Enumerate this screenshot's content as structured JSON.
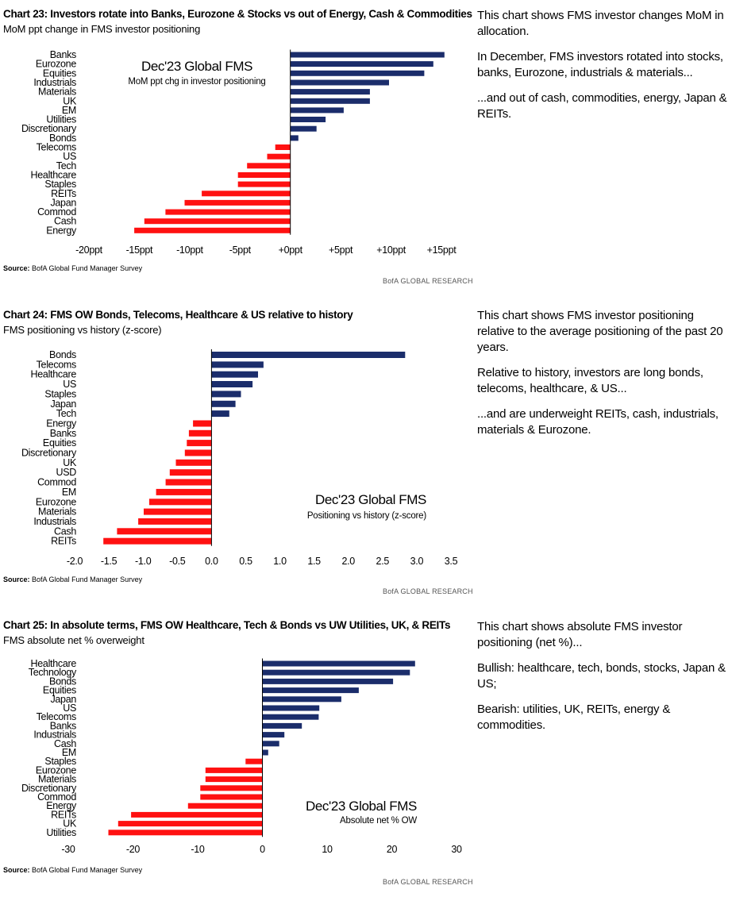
{
  "colors": {
    "positive": "#1b2d6b",
    "negative": "#ff1111",
    "axis": "#000000"
  },
  "charts": [
    {
      "title": "Chart 23: Investors rotate into Banks, Eurozone & Stocks vs out of Energy, Cash & Commodities",
      "subtitle": "MoM ppt change in FMS investor positioning",
      "annotation_title": "Dec'23 Global FMS",
      "annotation_sub": "MoM ppt chg in investor positioning",
      "source_label": "Source:",
      "source_text": "BofA Global Fund Manager Survey",
      "brand": "BofA GLOBAL RESEARCH",
      "side_text": [
        "This chart shows FMS investor changes MoM in allocation.",
        "In December, FMS investors rotated into stocks, banks, Eurozone, industrials & materials...",
        "...and out of cash, commodities, energy, Japan & REITs."
      ]
    },
    {
      "title": "Chart 24: FMS OW Bonds, Telecoms, Healthcare & US relative to history",
      "subtitle": "FMS positioning vs history (z-score)",
      "annotation_title": "Dec'23 Global FMS",
      "annotation_sub": "Positioning vs history (z-score)",
      "source_label": "Source:",
      "source_text": "BofA Global Fund Manager Survey",
      "brand": "BofA GLOBAL RESEARCH",
      "side_text": [
        "This chart shows FMS investor positioning relative to the average positioning of the past 20 years.",
        "Relative to history, investors are long bonds, telecoms, healthcare, & US...",
        "...and are underweight REITs, cash, industrials, materials & Eurozone."
      ]
    },
    {
      "title": "Chart 25: In absolute terms, FMS OW Healthcare, Tech & Bonds vs UW Utilities, UK, & REITs",
      "subtitle": "FMS absolute net % overweight",
      "annotation_title": "Dec'23 Global FMS",
      "annotation_sub": "Absolute net % OW",
      "source_label": "Source:",
      "source_text": "BofA Global Fund Manager Survey",
      "brand": "BofA GLOBAL RESEARCH",
      "side_text": [
        "This chart shows absolute FMS investor positioning (net %)...",
        "Bullish: healthcare, tech, bonds, stocks, Japan & US;",
        "Bearish: utilities, UK, REITs, energy & commodities."
      ]
    }
  ],
  "chart_data": [
    {
      "type": "bar",
      "orientation": "horizontal",
      "categories": [
        "Banks",
        "Eurozone",
        "Equities",
        "Industrials",
        "Materials",
        "UK",
        "EM",
        "Utilities",
        "Discretionary",
        "Bonds",
        "Telecoms",
        "US",
        "Tech",
        "Healthcare",
        "Staples",
        "REITs",
        "Japan",
        "Commod",
        "Cash",
        "Energy"
      ],
      "values": [
        15.3,
        14.2,
        13.3,
        9.8,
        7.9,
        7.9,
        5.3,
        3.5,
        2.6,
        0.8,
        -1.5,
        -2.3,
        -4.3,
        -5.2,
        -5.2,
        -8.8,
        -10.5,
        -12.4,
        -14.5,
        -15.5
      ],
      "xlim": [
        -20,
        15
      ],
      "ticks": [
        -20,
        -15,
        -10,
        -5,
        0,
        5,
        10,
        15
      ],
      "tick_labels": [
        "-20ppt",
        "-15ppt",
        "-10ppt",
        "-5ppt",
        "+0ppt",
        "+5ppt",
        "+10ppt",
        "+15ppt"
      ],
      "grid": false
    },
    {
      "type": "bar",
      "orientation": "horizontal",
      "categories": [
        "Bonds",
        "Telecoms",
        "Healthcare",
        "US",
        "Staples",
        "Japan",
        "Tech",
        "Energy",
        "Banks",
        "Equities",
        "Discretionary",
        "UK",
        "USD",
        "Commod",
        "EM",
        "Eurozone",
        "Materials",
        "Industrials",
        "Cash",
        "REITs"
      ],
      "values": [
        2.83,
        0.76,
        0.68,
        0.6,
        0.43,
        0.35,
        0.26,
        -0.27,
        -0.33,
        -0.36,
        -0.39,
        -0.52,
        -0.61,
        -0.67,
        -0.81,
        -0.91,
        -0.99,
        -1.07,
        -1.38,
        -1.58
      ],
      "xlim": [
        -2.0,
        3.5
      ],
      "ticks": [
        -2.0,
        -1.5,
        -1.0,
        -0.5,
        0.0,
        0.5,
        1.0,
        1.5,
        2.0,
        2.5,
        3.0,
        3.5
      ],
      "tick_labels": [
        "-2.0",
        "-1.5",
        "-1.0",
        "-0.5",
        "0.0",
        "0.5",
        "1.0",
        "1.5",
        "2.0",
        "2.5",
        "3.0",
        "3.5"
      ],
      "grid": false
    },
    {
      "type": "bar",
      "orientation": "horizontal",
      "categories": [
        "Healthcare",
        "Technology",
        "Bonds",
        "Equities",
        "Japan",
        "US",
        "Telecoms",
        "Banks",
        "Industrials",
        "Cash",
        "EM",
        "Staples",
        "Eurozone",
        "Materials",
        "Discretionary",
        "Commod",
        "Energy",
        "REITs",
        "UK",
        "Utilities"
      ],
      "values": [
        23.6,
        22.8,
        20.2,
        14.9,
        12.2,
        8.8,
        8.7,
        6.1,
        3.4,
        2.6,
        0.9,
        -2.6,
        -8.8,
        -8.8,
        -9.6,
        -9.6,
        -11.5,
        -20.3,
        -22.3,
        -23.8
      ],
      "xlim": [
        -30,
        30
      ],
      "ticks": [
        -30,
        -20,
        -10,
        0,
        10,
        20,
        30
      ],
      "tick_labels": [
        "-30",
        "-20",
        "-10",
        "0",
        "10",
        "20",
        "30"
      ],
      "grid": false
    }
  ]
}
